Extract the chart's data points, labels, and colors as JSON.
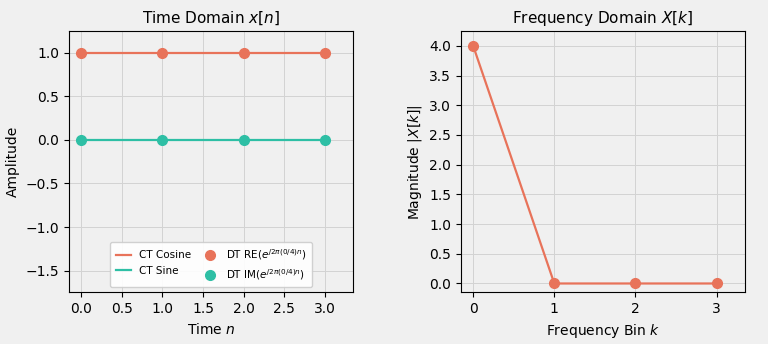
{
  "time_n": [
    0,
    1,
    2,
    3
  ],
  "cos_values": [
    1.0,
    1.0,
    1.0,
    1.0
  ],
  "sin_values": [
    0.0,
    0.0,
    0.0,
    0.0
  ],
  "freq_k": [
    0,
    1,
    2,
    3
  ],
  "freq_mag": [
    4.0,
    0.0,
    0.0,
    0.0
  ],
  "orange_color": "#E8735A",
  "teal_color": "#2EBFA5",
  "title_left": "Time Domain $x[n]$",
  "title_right": "Frequency Domain $X[k]$",
  "xlabel_left": "Time $n$",
  "ylabel_left": "Amplitude",
  "xlabel_right": "Frequency Bin $k$",
  "ylabel_right": "Magnitude $|X[k]|$",
  "ylim_left": [
    -1.75,
    1.25
  ],
  "ylim_right": [
    -0.15,
    4.25
  ],
  "xlim_left": [
    -0.15,
    3.35
  ],
  "xlim_right": [
    -0.15,
    3.35
  ],
  "legend_ct_cosine": "CT Cosine",
  "legend_ct_sine": "CT Sine",
  "legend_dt_re": "DT RE($e^{j2\\pi(0/4)n}$)",
  "legend_dt_im": "DT IM($e^{j2\\pi(0/4)n}$)",
  "background_color": "#f0f0f0",
  "marker_size": 7,
  "line_width": 1.6
}
